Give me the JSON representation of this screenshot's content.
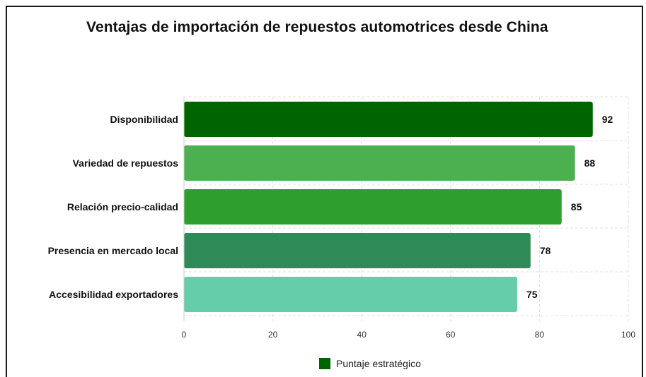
{
  "chart_data": {
    "type": "bar",
    "orientation": "horizontal",
    "title": "Ventajas de importación de repuestos automotrices desde China",
    "categories": [
      "Disponibilidad",
      "Variedad de repuestos",
      "Relación precio-calidad",
      "Presencia en mercado local",
      "Accesibilidad exportadores"
    ],
    "series": [
      {
        "name": "Puntaje estratégico",
        "values": [
          92,
          88,
          85,
          78,
          75
        ]
      }
    ],
    "bar_colors": [
      "#006400",
      "#4CAF50",
      "#2E9E2E",
      "#2E8B57",
      "#66CDAA"
    ],
    "legend_color": "#006400",
    "xlim": [
      0,
      100
    ],
    "xticks": [
      0,
      20,
      40,
      60,
      80,
      100
    ],
    "grid": true,
    "legend_position": "bottom",
    "show_values": true
  }
}
